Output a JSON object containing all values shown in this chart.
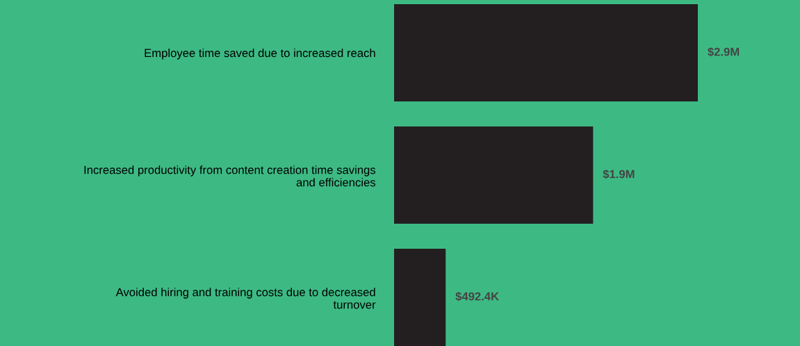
{
  "chart_data": {
    "type": "bar",
    "orientation": "horizontal",
    "categories": [
      "Employee time saved due to increased reach",
      "Increased productivity from content creation time savings\nand efficiencies",
      "Avoided hiring and training costs due to decreased\nturnover"
    ],
    "values": [
      2900000,
      1900000,
      492400
    ],
    "value_labels": [
      "$2.9M",
      "$1.9M",
      "$492.4K"
    ],
    "color": "#231f20",
    "grid": false,
    "legend": false,
    "tick_labels": "y"
  }
}
